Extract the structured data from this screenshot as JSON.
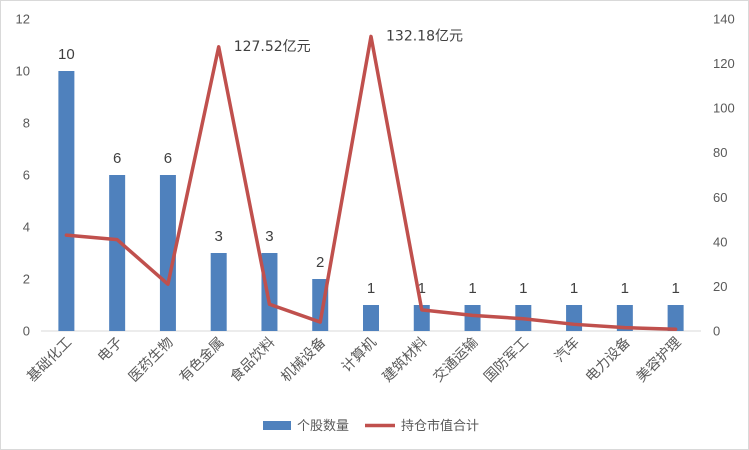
{
  "chart_data": {
    "type": "bar+line",
    "title": "",
    "categories": [
      "基础化工",
      "电子",
      "医药生物",
      "有色金属",
      "食品饮料",
      "机械设备",
      "计算机",
      "建筑材料",
      "交通运输",
      "国防军工",
      "汽车",
      "电力设备",
      "美容护理"
    ],
    "series": [
      {
        "name": "个股数量",
        "kind": "bar",
        "axis": "left",
        "color": "#4f81bd",
        "values": [
          10,
          6,
          6,
          3,
          3,
          2,
          1,
          1,
          1,
          1,
          1,
          1,
          1
        ],
        "data_labels": [
          "10",
          "6",
          "6",
          "3",
          "3",
          "2",
          "1",
          "1",
          "1",
          "1",
          "1",
          "1",
          "1"
        ]
      },
      {
        "name": "持仓市值合计",
        "kind": "line",
        "axis": "right",
        "color": "#c0504d",
        "values": [
          43,
          41,
          21,
          127.52,
          12,
          4,
          132.18,
          9.5,
          7,
          5.5,
          3,
          1.5,
          0.8
        ]
      }
    ],
    "annotations": [
      {
        "category_index": 3,
        "text": "127.52亿元"
      },
      {
        "category_index": 6,
        "text": "132.18亿元"
      }
    ],
    "left_axis": {
      "min": 0,
      "max": 12,
      "ticks": [
        "0",
        "2",
        "4",
        "6",
        "8",
        "10",
        "12"
      ]
    },
    "right_axis": {
      "min": 0,
      "max": 140,
      "ticks": [
        "0",
        "20",
        "40",
        "60",
        "80",
        "100",
        "120",
        "140"
      ]
    },
    "legend_position": "bottom",
    "grid": false
  }
}
